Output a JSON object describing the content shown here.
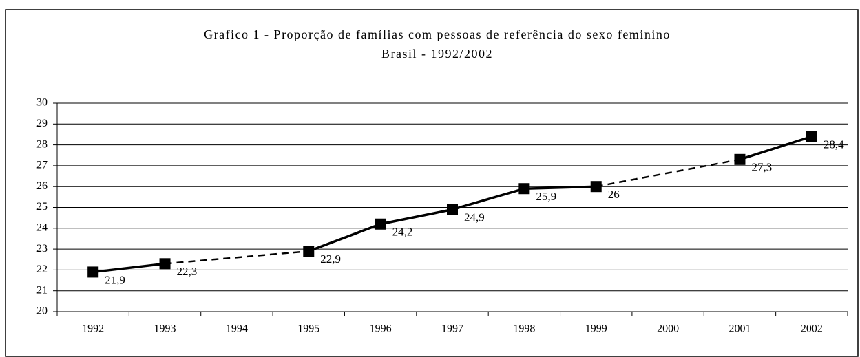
{
  "chart_data": {
    "type": "line",
    "title": "Grafico 1 - Proporção de famílias com pessoas de referência do sexo feminino",
    "subtitle": "Brasil - 1992/2002",
    "categories": [
      "1992",
      "1993",
      "1994",
      "1995",
      "1996",
      "1997",
      "1998",
      "1999",
      "2000",
      "2001",
      "2002"
    ],
    "values": [
      21.9,
      22.3,
      null,
      22.9,
      24.2,
      24.9,
      25.9,
      26,
      null,
      27.3,
      28.4
    ],
    "value_labels": [
      "21,9",
      "22,3",
      null,
      "22,9",
      "24,2",
      "24,9",
      "25,9",
      "26",
      null,
      "27,3",
      "28,4"
    ],
    "color": "#000000",
    "ylim": [
      20,
      30
    ],
    "yticks": [
      20,
      21,
      22,
      23,
      24,
      25,
      26,
      27,
      28,
      29,
      30
    ],
    "grid": true
  }
}
